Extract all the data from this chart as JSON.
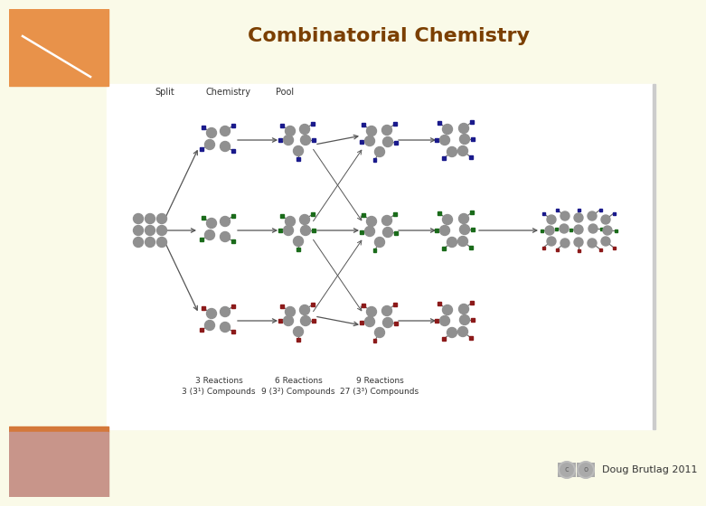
{
  "title": "Combinatorial Chemistry",
  "title_color": "#7B3F00",
  "title_fontsize": 16,
  "bg_color": "#FAFAE8",
  "white_area_color": "#FFFFFF",
  "orange_box_color": "#E8924A",
  "bottom_orange_bar_color": "#D4783A",
  "bottom_deco_color": "#C8958A",
  "credit_text": "Doug Brutlag 2011",
  "bead_color": "#909090",
  "blue_color": "#1A1A8C",
  "green_color": "#1A6B1A",
  "red_color": "#8C1A1A",
  "arrow_color": "#555555",
  "text_color": "#333333",
  "label_fontsize": 7,
  "reaction_fontsize": 6.5,
  "reaction_labels": [
    [
      "3 Reactions",
      "3 (3¹) Compounds"
    ],
    [
      "6 Reactions",
      "9 (3²) Compounds"
    ],
    [
      "9 Reactions",
      "27 (3³) Compounds"
    ]
  ]
}
